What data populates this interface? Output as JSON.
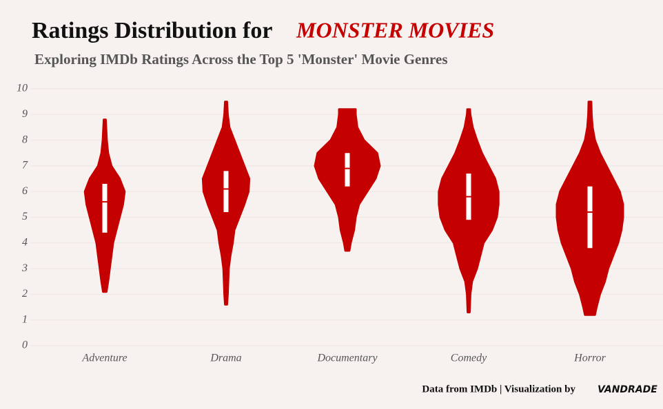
{
  "chart_data": {
    "type": "violin",
    "title": "Ratings Distribution for",
    "title_highlight": "MONSTER MOVIES",
    "subtitle": "Exploring IMDb Ratings Across the Top 5 'Monster' Movie Genres",
    "caption": "Data from IMDb | Visualization by",
    "caption_author": "VANDRADE",
    "categories": [
      "Adventure",
      "Drama",
      "Documentary",
      "Comedy",
      "Horror"
    ],
    "color": "#c40000",
    "ylim": [
      0,
      10
    ],
    "yticks": [
      0,
      1,
      2,
      3,
      4,
      5,
      6,
      7,
      8,
      9,
      10
    ],
    "grid": true,
    "violins": [
      {
        "ratings": [
          2.1,
          2.5,
          3,
          3.5,
          4,
          4.5,
          5,
          5.5,
          6,
          6.5,
          7,
          7.5,
          8,
          8.8
        ],
        "density": [
          0.05,
          0.1,
          0.15,
          0.2,
          0.25,
          0.35,
          0.45,
          0.55,
          0.6,
          0.45,
          0.2,
          0.1,
          0.06,
          0.03
        ],
        "q1": 4.4,
        "median": 5.6,
        "q3": 6.3
      },
      {
        "ratings": [
          1.6,
          2,
          3,
          3.5,
          4,
          4.5,
          5,
          5.5,
          6,
          6.5,
          7,
          7.5,
          8,
          8.5,
          9,
          9.5
        ],
        "density": [
          0.03,
          0.05,
          0.08,
          0.13,
          0.2,
          0.25,
          0.4,
          0.55,
          0.68,
          0.7,
          0.55,
          0.4,
          0.25,
          0.1,
          0.05,
          0.03
        ],
        "q1": 5.2,
        "median": 6.1,
        "q3": 6.8
      },
      {
        "ratings": [
          3.7,
          4,
          4.5,
          5,
          5.5,
          6,
          6.5,
          7,
          7.5,
          8,
          8.5,
          9,
          9.2
        ],
        "density": [
          0.06,
          0.1,
          0.2,
          0.25,
          0.35,
          0.6,
          0.85,
          0.98,
          0.9,
          0.5,
          0.3,
          0.25,
          0.25
        ],
        "q1": 6.2,
        "median": 6.9,
        "q3": 7.5
      },
      {
        "ratings": [
          1.3,
          2,
          2.5,
          3,
          3.5,
          4,
          4.5,
          5,
          5.5,
          6,
          6.5,
          7,
          7.5,
          8,
          8.5,
          9,
          9.2
        ],
        "density": [
          0.03,
          0.05,
          0.1,
          0.25,
          0.35,
          0.45,
          0.7,
          0.85,
          0.9,
          0.9,
          0.8,
          0.6,
          0.4,
          0.25,
          0.12,
          0.05,
          0.04
        ],
        "q1": 4.9,
        "median": 5.8,
        "q3": 6.7
      },
      {
        "ratings": [
          1.2,
          1.5,
          2,
          2.5,
          3,
          3.5,
          4,
          4.5,
          5,
          5.5,
          6,
          6.5,
          7,
          7.5,
          8,
          8.5,
          9,
          9.5
        ],
        "density": [
          0.15,
          0.2,
          0.3,
          0.45,
          0.55,
          0.7,
          0.85,
          0.95,
          1,
          1,
          0.9,
          0.7,
          0.5,
          0.3,
          0.15,
          0.08,
          0.05,
          0.04
        ],
        "q1": 3.8,
        "median": 5.2,
        "q3": 6.2
      }
    ]
  }
}
